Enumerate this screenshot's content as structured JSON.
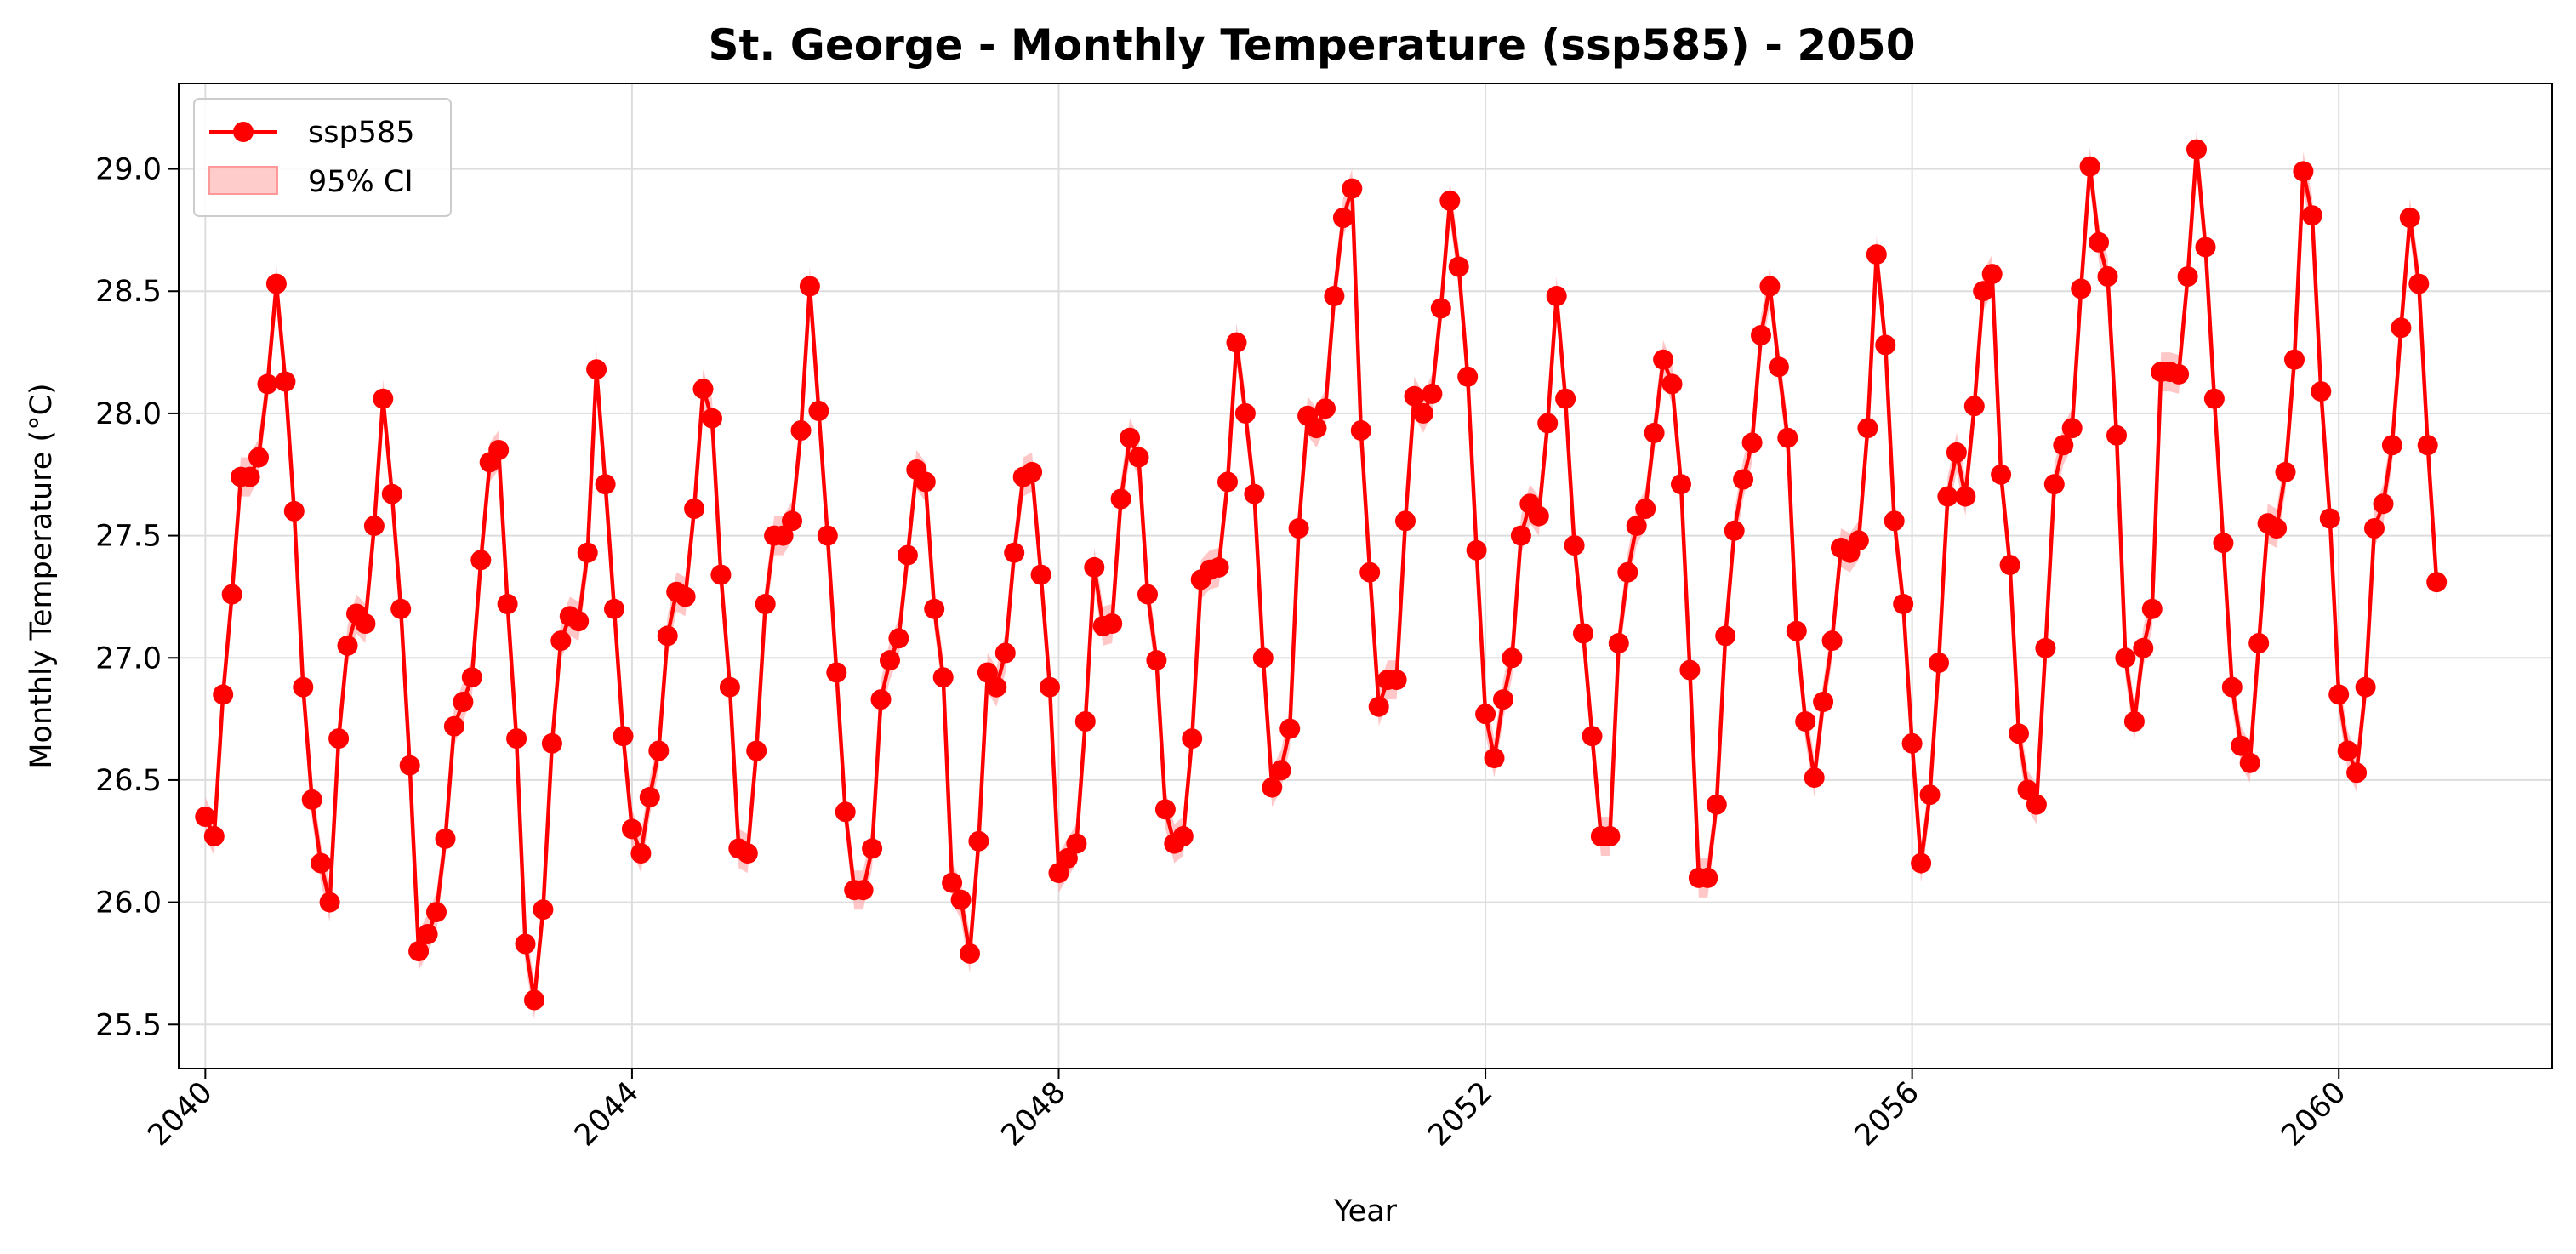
{
  "chart_data": {
    "type": "line",
    "title": "St. George - Monthly Temperature (ssp585) - 2050",
    "xlabel": "Year",
    "ylabel": "Monthly Temperature (°C)",
    "xlim": [
      2039.75,
      2062.0
    ],
    "ylim": [
      25.32,
      29.35
    ],
    "x_ticks": [
      2040,
      2044,
      2048,
      2052,
      2056,
      2060
    ],
    "y_ticks": [
      25.5,
      26.0,
      26.5,
      27.0,
      27.5,
      28.0,
      28.5,
      29.0
    ],
    "y_tick_labels": [
      "25.5",
      "26.0",
      "26.5",
      "27.0",
      "27.5",
      "28.0",
      "28.5",
      "29.0"
    ],
    "grid": true,
    "legend_position": "top-left",
    "line_color": "#ff0000",
    "ci_color": "#ff9999",
    "ci_half_width": 0.08,
    "start_year": 2040,
    "series": [
      {
        "name": "ssp585",
        "values": [
          26.35,
          26.27,
          26.85,
          27.26,
          27.74,
          27.74,
          27.82,
          28.12,
          28.53,
          28.13,
          27.6,
          26.88,
          26.42,
          26.16,
          26.0,
          26.67,
          27.05,
          27.18,
          27.14,
          27.54,
          28.06,
          27.67,
          27.2,
          26.56,
          25.8,
          25.87,
          25.96,
          26.26,
          26.72,
          26.82,
          26.92,
          27.4,
          27.8,
          27.85,
          27.22,
          26.67,
          25.83,
          25.6,
          25.97,
          26.65,
          27.07,
          27.17,
          27.15,
          27.43,
          28.18,
          27.71,
          27.2,
          26.68,
          26.3,
          26.2,
          26.43,
          26.62,
          27.09,
          27.27,
          27.25,
          27.61,
          28.1,
          27.98,
          27.34,
          26.88,
          26.22,
          26.2,
          26.62,
          27.22,
          27.5,
          27.5,
          27.56,
          27.93,
          28.52,
          28.01,
          27.5,
          26.94,
          26.37,
          26.05,
          26.05,
          26.22,
          26.83,
          26.99,
          27.08,
          27.42,
          27.77,
          27.72,
          27.2,
          26.92,
          26.08,
          26.01,
          25.79,
          26.25,
          26.94,
          26.88,
          27.02,
          27.43,
          27.74,
          27.76,
          27.34,
          26.88,
          26.12,
          26.18,
          26.24,
          26.74,
          27.37,
          27.13,
          27.14,
          27.65,
          27.9,
          27.82,
          27.26,
          26.99,
          26.38,
          26.24,
          26.27,
          26.67,
          27.32,
          27.36,
          27.37,
          27.72,
          28.29,
          28.0,
          27.67,
          27.0,
          26.47,
          26.54,
          26.71,
          27.53,
          27.99,
          27.94,
          28.02,
          28.48,
          28.8,
          28.92,
          27.93,
          27.35,
          26.8,
          26.91,
          26.91,
          27.56,
          28.07,
          28.0,
          28.08,
          28.43,
          28.87,
          28.6,
          28.15,
          27.44,
          26.77,
          26.59,
          26.83,
          27.0,
          27.5,
          27.63,
          27.58,
          27.96,
          28.48,
          28.06,
          27.46,
          27.1,
          26.68,
          26.27,
          26.27,
          27.06,
          27.35,
          27.54,
          27.61,
          27.92,
          28.22,
          28.12,
          27.71,
          26.95,
          26.1,
          26.1,
          26.4,
          27.09,
          27.52,
          27.73,
          27.88,
          28.32,
          28.52,
          28.19,
          27.9,
          27.11,
          26.74,
          26.51,
          26.82,
          27.07,
          27.45,
          27.43,
          27.48,
          27.94,
          28.65,
          28.28,
          27.56,
          27.22,
          26.65,
          26.16,
          26.44,
          26.98,
          27.66,
          27.84,
          27.66,
          28.03,
          28.5,
          28.57,
          27.75,
          27.38,
          26.69,
          26.46,
          26.4,
          27.04,
          27.71,
          27.87,
          27.94,
          28.51,
          29.01,
          28.7,
          28.56,
          27.91,
          27.0,
          26.74,
          27.04,
          27.2,
          28.17,
          28.17,
          28.16,
          28.56,
          29.08,
          28.68,
          28.06,
          27.47,
          26.88,
          26.64,
          26.57,
          27.06,
          27.55,
          27.53,
          27.76,
          28.22,
          28.99,
          28.81,
          28.09,
          27.57,
          26.85,
          26.62,
          26.53,
          26.88,
          27.53,
          27.63,
          27.87,
          28.35,
          28.8,
          28.53,
          27.87,
          27.31
        ]
      }
    ],
    "legend": {
      "line_label": "ssp585",
      "ci_label": "95% CI"
    }
  }
}
